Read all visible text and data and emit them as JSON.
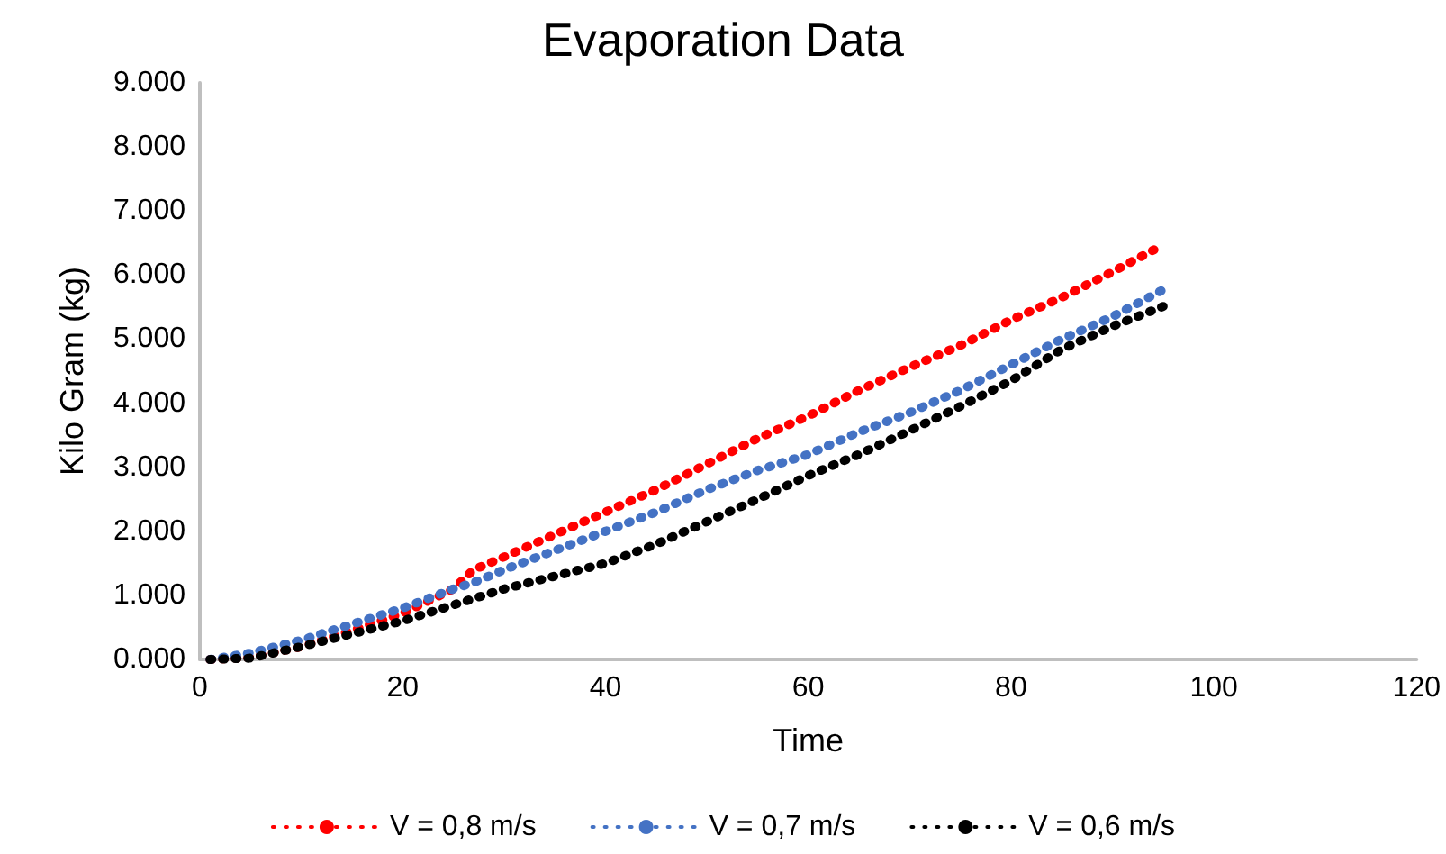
{
  "chart_data": {
    "type": "line",
    "title": "Evaporation Data",
    "xlabel": "Time",
    "ylabel": "Kilo Gram (kg)",
    "x": [
      1,
      5,
      10,
      15,
      20,
      25,
      27,
      30,
      35,
      40,
      45,
      50,
      55,
      60,
      65,
      70,
      75,
      80,
      85,
      90,
      95
    ],
    "series": [
      {
        "name": "V = 0,8 m/s",
        "color": "#ff0000",
        "values": [
          0,
          30,
          200,
          450,
          720,
          1100,
          1400,
          1600,
          1950,
          2300,
          2650,
          3050,
          3450,
          3800,
          4200,
          4560,
          4900,
          5300,
          5650,
          6050,
          6470
        ]
      },
      {
        "name": "V = 0,7 m/s",
        "color": "#4472c4",
        "values": [
          0,
          100,
          300,
          550,
          800,
          1100,
          1200,
          1400,
          1700,
          2000,
          2300,
          2650,
          2950,
          3200,
          3550,
          3850,
          4200,
          4600,
          5000,
          5350,
          5770
        ]
      },
      {
        "name": "V = 0,6 m/s",
        "color": "#000000",
        "values": [
          0,
          20,
          200,
          400,
          600,
          850,
          950,
          1100,
          1300,
          1500,
          1800,
          2150,
          2500,
          2870,
          3200,
          3570,
          3950,
          4350,
          4840,
          5200,
          5510
        ]
      }
    ],
    "xlim": [
      0,
      120
    ],
    "xticks": [
      0,
      20,
      40,
      60,
      80,
      100,
      120
    ],
    "ylim": [
      0,
      9000
    ],
    "yticks": [
      {
        "value": 0,
        "label": "0.000"
      },
      {
        "value": 1000,
        "label": "1.000"
      },
      {
        "value": 2000,
        "label": "2.000"
      },
      {
        "value": 3000,
        "label": "3.000"
      },
      {
        "value": 4000,
        "label": "4.000"
      },
      {
        "value": 5000,
        "label": "5.000"
      },
      {
        "value": 6000,
        "label": "6.000"
      },
      {
        "value": 7000,
        "label": "7.000"
      },
      {
        "value": 8000,
        "label": "8.000"
      },
      {
        "value": 9000,
        "label": "9.000"
      }
    ],
    "grid": false,
    "legend": "bottom",
    "marker": "none",
    "line_style": "dotted"
  }
}
